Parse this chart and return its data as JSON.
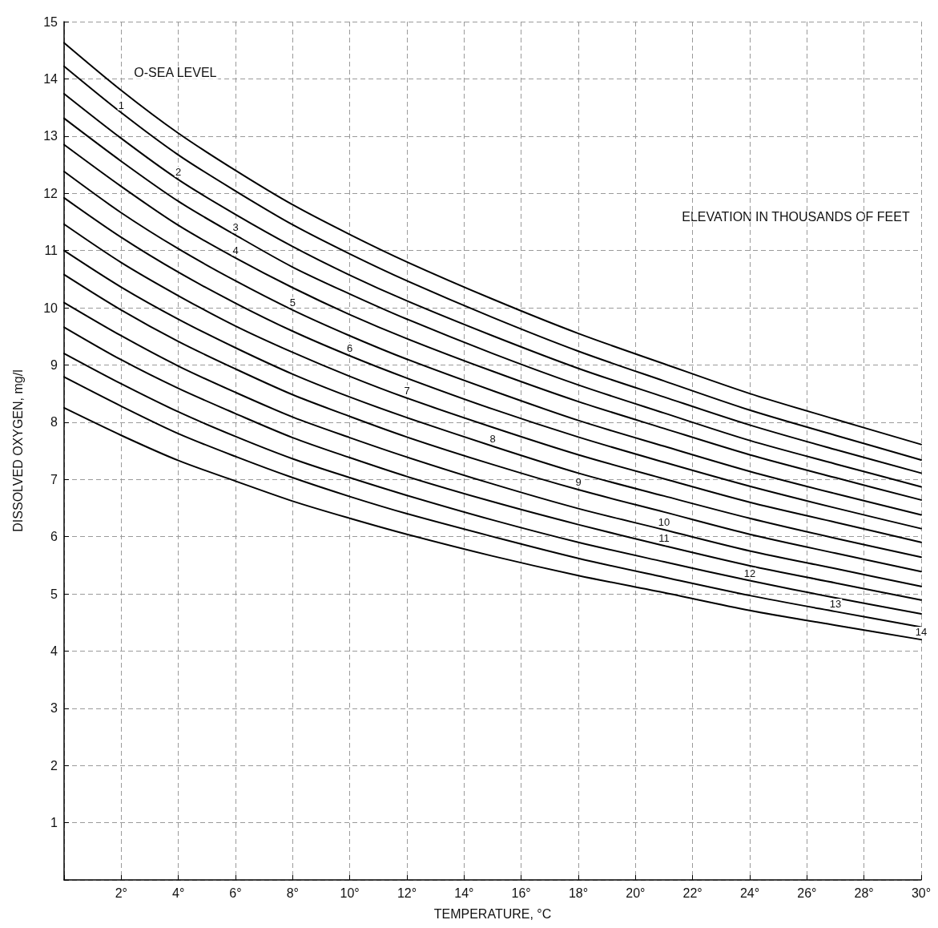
{
  "chart_data": {
    "type": "line",
    "xlabel": "TEMPERATURE, °C",
    "ylabel": "DISSOLVED OXYGEN, mg/l",
    "annotations": [
      "ELEVATION IN THOUSANDS OF FEET"
    ],
    "x": [
      0,
      2,
      4,
      6,
      8,
      10,
      12,
      15,
      18,
      21,
      24,
      27,
      30
    ],
    "series": [
      {
        "name": "O-SEA LEVEL",
        "color": "#000000",
        "values": [
          14.63,
          13.8,
          13.05,
          12.4,
          11.8,
          11.28,
          10.8,
          10.15,
          9.55,
          9.02,
          8.5,
          8.05,
          7.61
        ]
      },
      {
        "name": "1",
        "color": "#000000",
        "values": [
          14.22,
          13.41,
          12.67,
          12.04,
          11.45,
          10.94,
          10.47,
          9.83,
          9.24,
          8.72,
          8.21,
          7.77,
          7.34
        ]
      },
      {
        "name": "2",
        "color": "#000000",
        "values": [
          13.74,
          12.96,
          12.24,
          11.63,
          11.07,
          10.57,
          10.12,
          9.51,
          8.94,
          8.44,
          7.95,
          7.52,
          7.11
        ]
      },
      {
        "name": "3",
        "color": "#000000",
        "values": [
          13.31,
          12.56,
          11.86,
          11.27,
          10.71,
          10.24,
          9.8,
          9.2,
          8.65,
          8.16,
          7.68,
          7.27,
          6.87
        ]
      },
      {
        "name": "4",
        "color": "#000000",
        "values": [
          12.85,
          12.12,
          11.44,
          10.87,
          10.35,
          9.88,
          9.46,
          8.89,
          8.36,
          7.89,
          7.43,
          7.03,
          6.64
        ]
      },
      {
        "name": "5",
        "color": "#000000",
        "values": [
          12.38,
          11.66,
          11.03,
          10.47,
          9.96,
          9.51,
          9.1,
          8.55,
          8.03,
          7.58,
          7.14,
          6.75,
          6.38
        ]
      },
      {
        "name": "6",
        "color": "#000000",
        "values": [
          11.92,
          11.23,
          10.62,
          10.08,
          9.59,
          9.16,
          8.77,
          8.23,
          7.74,
          7.3,
          6.88,
          6.5,
          6.14
        ]
      },
      {
        "name": "7",
        "color": "#000000",
        "values": [
          11.46,
          10.79,
          10.21,
          9.68,
          9.22,
          8.8,
          8.42,
          7.91,
          7.43,
          7.01,
          6.6,
          6.25,
          5.9
        ]
      },
      {
        "name": "8",
        "color": "#000000",
        "values": [
          11.0,
          10.36,
          9.8,
          9.3,
          8.84,
          8.44,
          8.08,
          7.58,
          7.11,
          6.71,
          6.32,
          5.97,
          5.64
        ]
      },
      {
        "name": "9",
        "color": "#000000",
        "values": [
          10.58,
          9.96,
          9.41,
          8.93,
          8.48,
          8.1,
          7.74,
          7.26,
          6.82,
          6.43,
          6.04,
          5.71,
          5.39
        ]
      },
      {
        "name": "10",
        "color": "#000000",
        "values": [
          10.09,
          9.51,
          8.98,
          8.52,
          8.09,
          7.73,
          7.39,
          6.92,
          6.49,
          6.12,
          5.75,
          5.44,
          5.13
        ]
      },
      {
        "name": "11",
        "color": "#000000",
        "values": [
          9.66,
          9.09,
          8.59,
          8.15,
          7.73,
          7.38,
          7.05,
          6.61,
          6.21,
          5.84,
          5.49,
          5.19,
          4.89
        ]
      },
      {
        "name": "12",
        "color": "#000000",
        "values": [
          9.2,
          8.67,
          8.18,
          7.75,
          7.36,
          7.03,
          6.72,
          6.29,
          5.9,
          5.56,
          5.23,
          4.93,
          4.65
        ]
      },
      {
        "name": "13",
        "color": "#000000",
        "values": [
          8.79,
          8.28,
          7.8,
          7.4,
          7.03,
          6.7,
          6.4,
          6.0,
          5.62,
          5.29,
          4.97,
          4.69,
          4.42
        ]
      },
      {
        "name": "14",
        "color": "#000000",
        "values": [
          8.25,
          7.77,
          7.33,
          6.97,
          6.62,
          6.32,
          6.04,
          5.66,
          5.32,
          5.02,
          4.71,
          4.45,
          4.2
        ]
      }
    ],
    "xlim": [
      0,
      30
    ],
    "xticks": [
      {
        "value": 0,
        "label": null
      },
      {
        "value": 2,
        "label": "2°"
      },
      {
        "value": 4,
        "label": "4°"
      },
      {
        "value": 6,
        "label": "6°"
      },
      {
        "value": 8,
        "label": "8°"
      },
      {
        "value": 10,
        "label": "10°"
      },
      {
        "value": 12,
        "label": "12°"
      },
      {
        "value": 14,
        "label": "14°"
      },
      {
        "value": 16,
        "label": "16°"
      },
      {
        "value": 18,
        "label": "18°"
      },
      {
        "value": 20,
        "label": "20°"
      },
      {
        "value": 22,
        "label": "22°"
      },
      {
        "value": 24,
        "label": "24°"
      },
      {
        "value": 26,
        "label": "26°"
      },
      {
        "value": 28,
        "label": "28°"
      },
      {
        "value": 30,
        "label": "30°"
      }
    ],
    "ylim": [
      0,
      15
    ],
    "yticks": [
      {
        "value": 0,
        "label": null
      },
      1,
      2,
      3,
      4,
      5,
      6,
      7,
      8,
      9,
      10,
      11,
      12,
      13,
      14,
      15
    ],
    "grid": true,
    "legend": false,
    "marker": "none",
    "line_style": "solid"
  }
}
